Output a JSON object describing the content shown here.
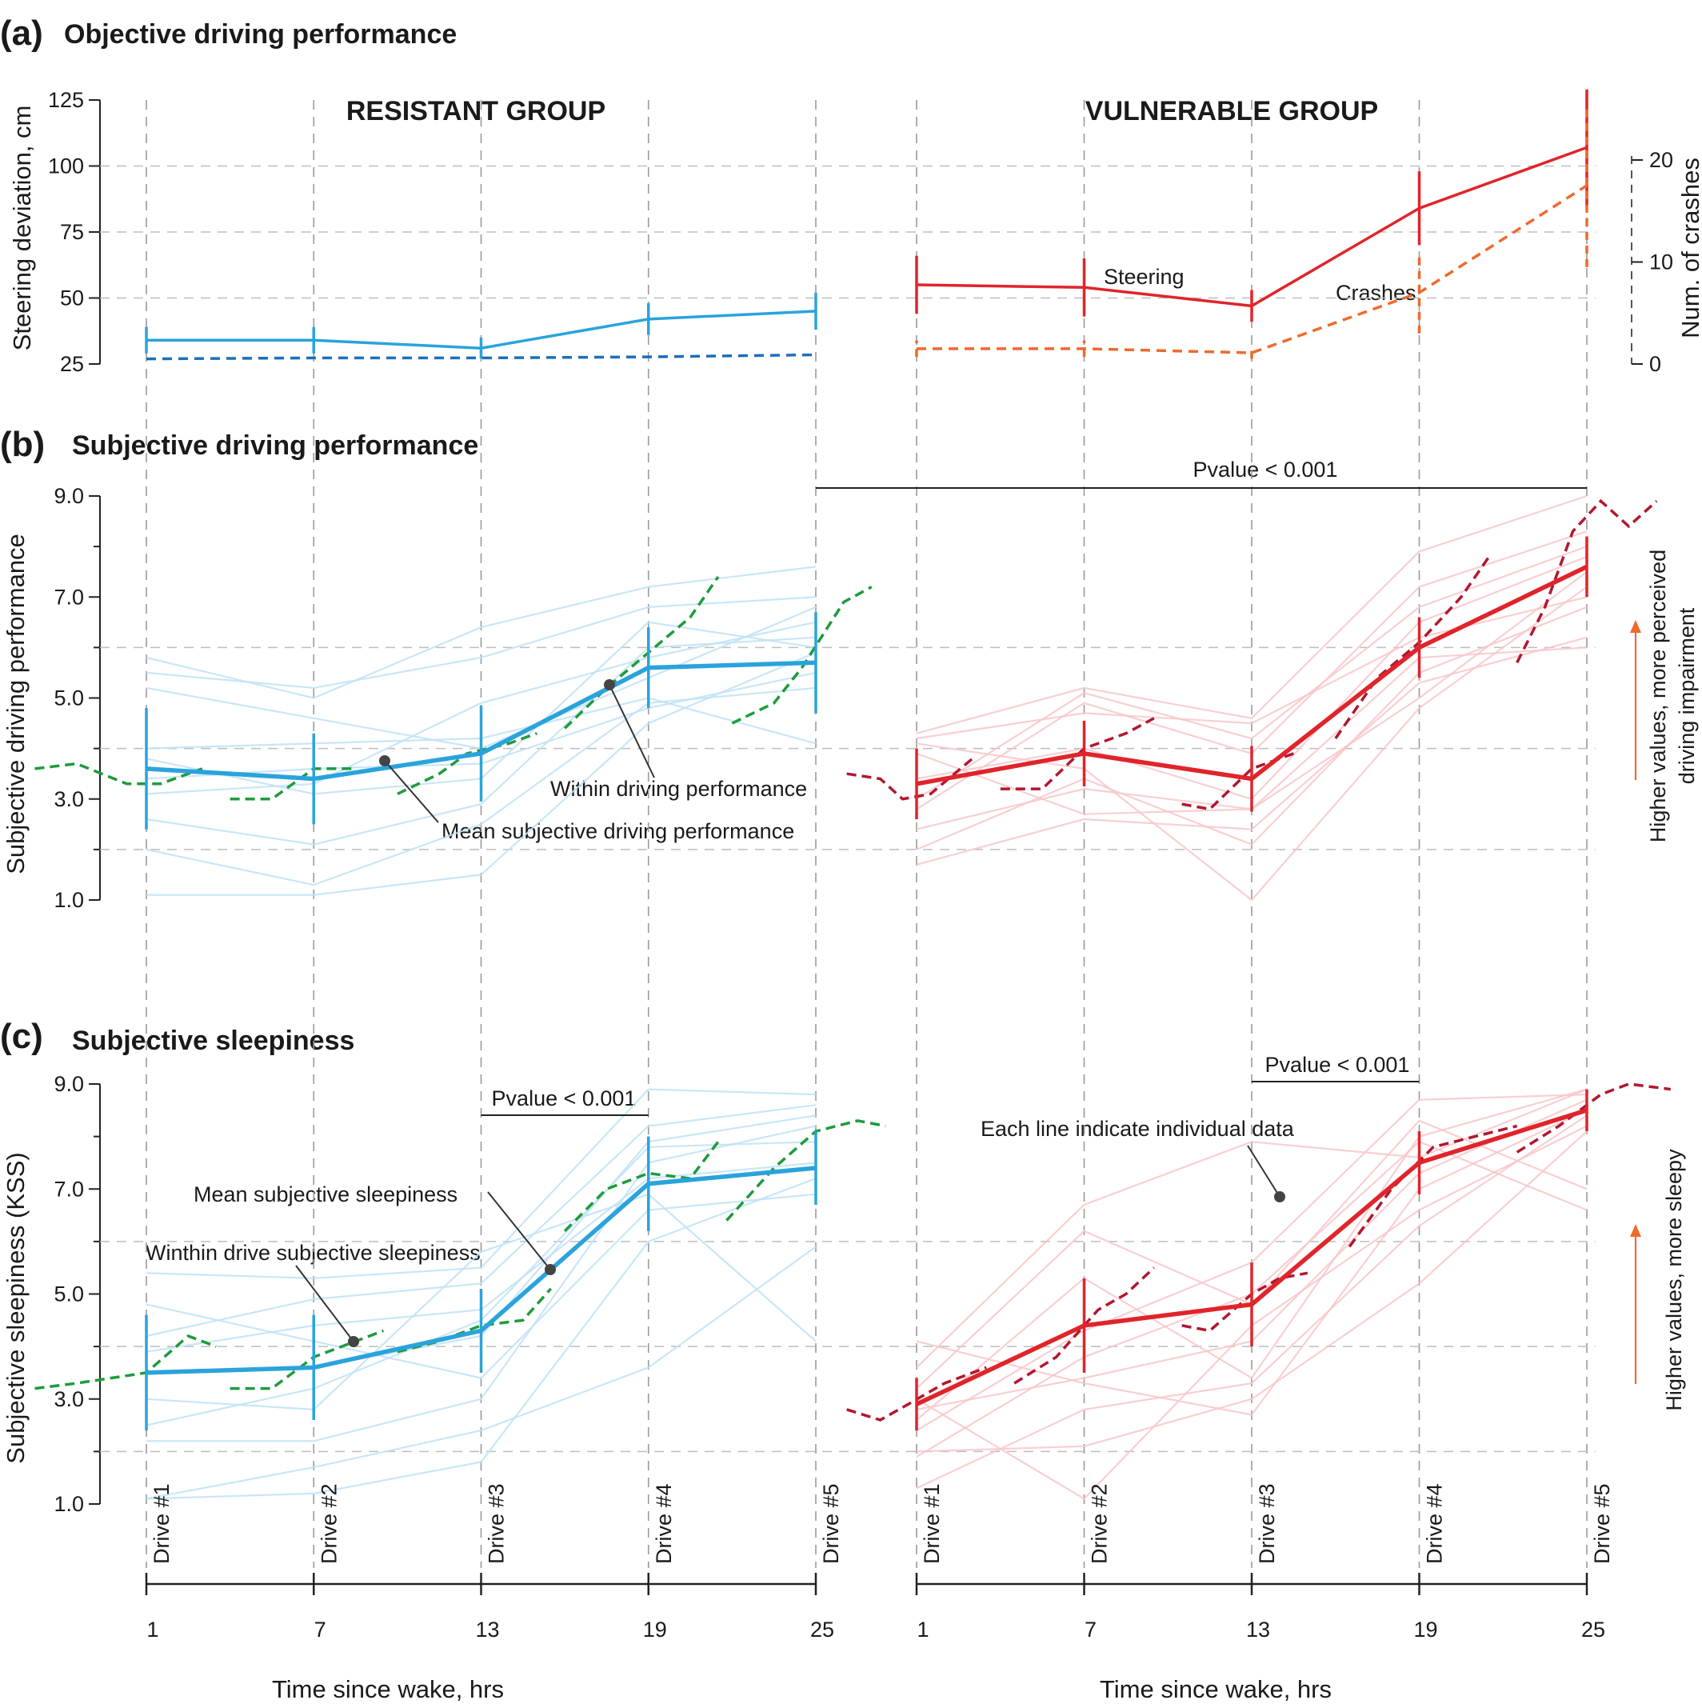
{
  "colors": {
    "resistant": "#2aa3dc",
    "resistant_dark": "#1d6fb8",
    "vulnerable": "#e0242b",
    "vulnerable_dark": "#b0182f",
    "crashes": "#ef6a2c",
    "within": "#1e9b3c",
    "arrow": "#ef6a2c"
  },
  "icons": {
    "pointer": "dot-leader-icon",
    "arrow": "arrow-up-icon"
  },
  "groups": {
    "left": "RESISTANT GROUP",
    "right": "VULNERABLE GROUP"
  },
  "x_axis": {
    "label": "Time since wake, hrs",
    "ticks": [
      "1",
      "7",
      "13",
      "19",
      "25"
    ],
    "drive_labels": [
      "Drive #1",
      "Drive #2",
      "Drive #3",
      "Drive #4",
      "Drive #5"
    ]
  },
  "chart_data": [
    {
      "id": "a",
      "type": "line",
      "panel_letter": "(a)",
      "title": "Objective driving performance",
      "ylabel": "Steering deviation, cm",
      "ylim": [
        25,
        125
      ],
      "yticks": [
        "25",
        "50",
        "75",
        "100",
        "125"
      ],
      "y2label": "Num. of crashes",
      "y2lim": [
        0,
        20
      ],
      "y2ticks": [
        "0",
        "10",
        "20"
      ],
      "x": [
        1,
        7,
        13,
        19,
        25
      ],
      "grid": true,
      "annotations": [
        "Steering",
        "Crashes"
      ],
      "series": [
        {
          "group": "resistant",
          "measure": "steering",
          "values": [
            34,
            34,
            31,
            42,
            45
          ],
          "error": [
            5,
            5,
            4,
            6,
            7
          ]
        },
        {
          "group": "resistant",
          "measure": "crashes",
          "values": [
            0.5,
            0.6,
            0.6,
            0.7,
            0.9
          ]
        },
        {
          "group": "vulnerable",
          "measure": "steering",
          "values": [
            55,
            54,
            47,
            84,
            107
          ],
          "error": [
            11,
            11,
            6,
            14,
            22
          ]
        },
        {
          "group": "vulnerable",
          "measure": "crashes",
          "values": [
            1.5,
            1.5,
            1.1,
            7,
            17.5
          ],
          "error": [
            0.8,
            0.8,
            0.6,
            4,
            8
          ]
        }
      ]
    },
    {
      "id": "b",
      "type": "line",
      "panel_letter": "(b)",
      "title": "Subjective driving performance",
      "ylabel": "Subjective driving performance",
      "ylim": [
        1.0,
        9.0
      ],
      "yticks": [
        "1.0",
        "3.0",
        "5.0",
        "7.0",
        "9.0"
      ],
      "x": [
        1,
        7,
        13,
        19,
        25
      ],
      "grid": true,
      "pvalue": "Pvalue < 0.001",
      "annotations": [
        "Within driving performance",
        "Mean subjective driving performance"
      ],
      "side_note": [
        "Higher values, more perceived",
        "driving impairment"
      ],
      "series": [
        {
          "group": "resistant",
          "kind": "mean",
          "values": [
            3.6,
            3.4,
            3.9,
            5.6,
            5.7
          ],
          "error": [
            1.2,
            0.9,
            0.95,
            0.8,
            1.0
          ]
        },
        {
          "group": "vulnerable",
          "kind": "mean",
          "values": [
            3.3,
            3.9,
            3.4,
            6.0,
            7.6
          ],
          "error": [
            0.7,
            0.65,
            0.65,
            0.6,
            0.6
          ]
        }
      ],
      "individual": {
        "resistant": [
          [
            5.8,
            5.0,
            6.4,
            7.2,
            7.6
          ],
          [
            5.5,
            5.2,
            5.8,
            6.8,
            7.0
          ],
          [
            3.1,
            3.3,
            4.9,
            5.8,
            6.5
          ],
          [
            2.6,
            2.1,
            2.9,
            6.0,
            6.2
          ],
          [
            1.1,
            1.1,
            1.5,
            4.5,
            5.9
          ],
          [
            4.0,
            4.1,
            4.2,
            5.0,
            4.1
          ],
          [
            2.0,
            1.3,
            2.5,
            4.9,
            5.2
          ],
          [
            3.8,
            3.1,
            3.4,
            6.5,
            6.0
          ],
          [
            5.2,
            4.6,
            4.0,
            5.4,
            6.8
          ],
          [
            3.4,
            3.6,
            3.7,
            4.8,
            5.5
          ]
        ],
        "vulnerable": [
          [
            4.3,
            5.2,
            4.6,
            7.9,
            9.0
          ],
          [
            2.0,
            3.4,
            2.1,
            5.5,
            6.8
          ],
          [
            3.4,
            4.0,
            3.0,
            6.5,
            7.8
          ],
          [
            4.2,
            4.7,
            4.5,
            6.2,
            7.0
          ],
          [
            1.7,
            2.6,
            2.4,
            5.3,
            6.2
          ],
          [
            2.8,
            4.9,
            3.9,
            7.2,
            8.3
          ],
          [
            3.9,
            2.7,
            2.8,
            5.8,
            6.0
          ],
          [
            3.0,
            5.1,
            4.2,
            6.8,
            8.0
          ],
          [
            4.1,
            3.6,
            1.0,
            4.8,
            7.2
          ],
          [
            2.4,
            3.2,
            2.8,
            5.0,
            7.5
          ]
        ]
      },
      "within_drive": {
        "resistant": [
          [
            [
              -3,
              3.6
            ],
            [
              -1.5,
              3.7
            ],
            [
              0.3,
              3.3
            ],
            [
              1.5,
              3.3
            ],
            [
              3,
              3.6
            ]
          ],
          [
            [
              4,
              3.0
            ],
            [
              5.5,
              3.0
            ],
            [
              7,
              3.6
            ],
            [
              8.5,
              3.6
            ]
          ],
          [
            [
              10,
              3.1
            ],
            [
              11.5,
              3.5
            ],
            [
              12.5,
              3.9
            ],
            [
              14,
              4.1
            ],
            [
              15,
              4.3
            ]
          ],
          [
            [
              16,
              4.4
            ],
            [
              17.5,
              5.2
            ],
            [
              19,
              5.9
            ],
            [
              20.5,
              6.6
            ],
            [
              21.5,
              7.4
            ]
          ],
          [
            [
              22,
              4.5
            ],
            [
              23.5,
              4.9
            ],
            [
              24.5,
              5.6
            ],
            [
              26,
              6.9
            ],
            [
              27,
              7.2
            ]
          ]
        ],
        "vulnerable": [
          [
            [
              -1.5,
              3.5
            ],
            [
              -0.3,
              3.4
            ],
            [
              0.5,
              3.0
            ],
            [
              1.5,
              3.1
            ],
            [
              3,
              3.8
            ]
          ],
          [
            [
              4,
              3.2
            ],
            [
              5.5,
              3.2
            ],
            [
              7,
              4.0
            ],
            [
              8.5,
              4.3
            ],
            [
              9.5,
              4.6
            ]
          ],
          [
            [
              10.5,
              2.9
            ],
            [
              11.5,
              2.8
            ],
            [
              13,
              3.6
            ],
            [
              14.5,
              3.9
            ]
          ],
          [
            [
              16,
              4.2
            ],
            [
              17.5,
              5.4
            ],
            [
              19,
              6.1
            ],
            [
              20.5,
              7.0
            ],
            [
              21.5,
              7.8
            ]
          ],
          [
            [
              22.5,
              5.7
            ],
            [
              23.5,
              6.8
            ],
            [
              24.5,
              8.3
            ],
            [
              25.5,
              8.9
            ],
            [
              26.5,
              8.4
            ],
            [
              27.5,
              8.9
            ]
          ]
        ]
      }
    },
    {
      "id": "c",
      "type": "line",
      "panel_letter": "(c)",
      "title": "Subjective sleepiness",
      "ylabel": "Subjective sleepiness (KSS)",
      "ylim": [
        1.0,
        9.0
      ],
      "yticks": [
        "1.0",
        "3.0",
        "5.0",
        "7.0",
        "9.0"
      ],
      "x": [
        1,
        7,
        13,
        19,
        25
      ],
      "grid": true,
      "pvalue_left": "Pvalue < 0.001",
      "pvalue_right": "Pvalue < 0.001",
      "annotations": [
        "Mean subjective sleepiness",
        "Winthin drive subjective sleepiness",
        "Each line indicate individual data"
      ],
      "side_note": [
        "Higher values, more sleepy"
      ],
      "series": [
        {
          "group": "resistant",
          "kind": "mean",
          "values": [
            3.5,
            3.6,
            4.3,
            7.1,
            7.4
          ],
          "error": [
            1.1,
            1.0,
            0.8,
            0.9,
            0.7
          ]
        },
        {
          "group": "vulnerable",
          "kind": "mean",
          "values": [
            2.9,
            4.4,
            4.8,
            7.5,
            8.5
          ],
          "error": [
            0.5,
            0.9,
            0.8,
            0.6,
            0.4
          ]
        }
      ],
      "individual": {
        "resistant": [
          [
            5.4,
            5.3,
            5.5,
            8.9,
            8.8
          ],
          [
            4.2,
            4.9,
            5.2,
            8.2,
            8.6
          ],
          [
            3.5,
            3.6,
            4.2,
            7.9,
            8.4
          ],
          [
            2.2,
            2.2,
            3.0,
            7.5,
            8.2
          ],
          [
            1.1,
            1.2,
            1.8,
            6.0,
            7.2
          ],
          [
            3.0,
            2.8,
            5.8,
            6.9,
            4.1
          ],
          [
            2.5,
            3.2,
            4.5,
            7.8,
            7.9
          ],
          [
            4.8,
            4.1,
            3.4,
            6.6,
            6.9
          ],
          [
            1.1,
            1.7,
            2.4,
            3.6,
            5.9
          ],
          [
            3.9,
            4.4,
            4.7,
            7.2,
            7.5
          ]
        ],
        "vulnerable": [
          [
            3.6,
            6.7,
            7.9,
            7.6,
            8.9
          ],
          [
            2.4,
            4.3,
            5.6,
            8.7,
            8.8
          ],
          [
            1.3,
            2.8,
            3.3,
            6.3,
            8.4
          ],
          [
            2.8,
            3.4,
            4.1,
            7.3,
            8.7
          ],
          [
            3.2,
            6.2,
            4.8,
            8.3,
            7.0
          ],
          [
            2.0,
            2.1,
            3.0,
            5.2,
            8.1
          ],
          [
            4.1,
            3.3,
            2.7,
            7.0,
            8.5
          ],
          [
            1.9,
            3.8,
            5.0,
            7.9,
            6.6
          ],
          [
            3.0,
            1.1,
            4.4,
            6.6,
            8.2
          ],
          [
            2.6,
            5.3,
            3.4,
            8.0,
            8.9
          ]
        ]
      },
      "within_drive": {
        "resistant": [
          [
            [
              -3,
              3.2
            ],
            [
              -1.5,
              3.3
            ],
            [
              1,
              3.5
            ],
            [
              2.5,
              4.2
            ],
            [
              3.5,
              4.0
            ]
          ],
          [
            [
              4,
              3.2
            ],
            [
              5.5,
              3.2
            ],
            [
              7,
              3.8
            ],
            [
              8.5,
              4.1
            ],
            [
              9.5,
              4.3
            ]
          ],
          [
            [
              10,
              3.9
            ],
            [
              11.5,
              4.1
            ],
            [
              13,
              4.4
            ],
            [
              14.5,
              4.5
            ],
            [
              15.5,
              5.1
            ]
          ],
          [
            [
              16,
              6.2
            ],
            [
              17.5,
              7.0
            ],
            [
              19,
              7.3
            ],
            [
              20.5,
              7.2
            ],
            [
              21.5,
              7.9
            ]
          ],
          [
            [
              21.8,
              6.4
            ],
            [
              23.5,
              7.4
            ],
            [
              25,
              8.1
            ],
            [
              26.5,
              8.3
            ],
            [
              27.5,
              8.2
            ]
          ]
        ],
        "vulnerable": [
          [
            [
              -1.5,
              2.8
            ],
            [
              -0.3,
              2.6
            ],
            [
              0.7,
              2.9
            ],
            [
              2,
              3.3
            ],
            [
              3.5,
              3.6
            ]
          ],
          [
            [
              4.5,
              3.3
            ],
            [
              6,
              3.8
            ],
            [
              7.5,
              4.7
            ],
            [
              8.5,
              5.0
            ],
            [
              9.5,
              5.5
            ]
          ],
          [
            [
              10.5,
              4.4
            ],
            [
              11.5,
              4.3
            ],
            [
              13,
              5.0
            ],
            [
              14,
              5.3
            ],
            [
              15,
              5.4
            ]
          ],
          [
            [
              16.5,
              5.9
            ],
            [
              18,
              7.0
            ],
            [
              19.5,
              7.8
            ],
            [
              21,
              8.0
            ],
            [
              22.5,
              8.2
            ]
          ],
          [
            [
              22.5,
              7.7
            ],
            [
              24,
              8.2
            ],
            [
              25.5,
              8.8
            ],
            [
              26.5,
              9.0
            ],
            [
              28,
              8.9
            ]
          ]
        ]
      }
    }
  ]
}
